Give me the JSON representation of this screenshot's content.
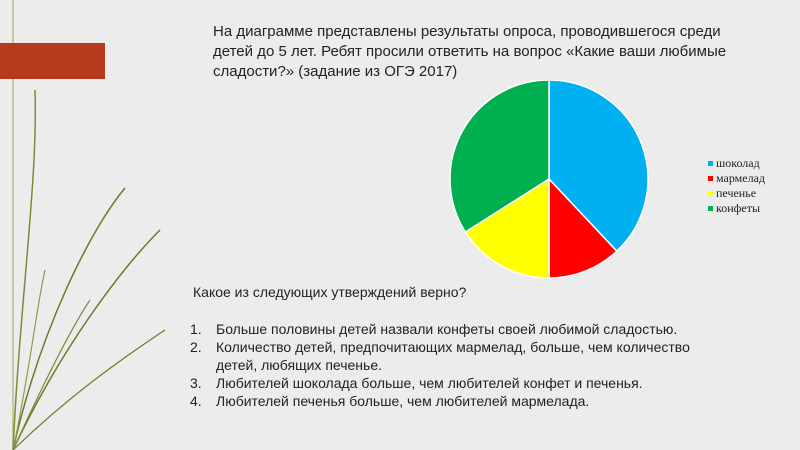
{
  "intro": "На диаграмме представлены результаты опроса, проводившегося среди детей до 5 лет. Ребят просили ответить на вопрос «Какие ваши любимые сладости?» (задание из ОГЭ 2017)",
  "question": "Какое из следующих утверждений верно?",
  "answers": [
    {
      "num": "1.",
      "text": "Больше половины детей назвали конфеты своей любимой сладостью."
    },
    {
      "num": "2.",
      "text": "Количество детей, предпочитающих мармелад, больше, чем количество детей, любящих печенье."
    },
    {
      "num": "3.",
      "text": "Любителей шоколада больше, чем любителей конфет и печенья."
    },
    {
      "num": "4.",
      "text": "Любителей печенья больше, чем любителей мармелада."
    }
  ],
  "chart_data": {
    "type": "pie",
    "categories": [
      "шоколад",
      "мармелад",
      "печенье",
      "конфеты"
    ],
    "values": [
      38,
      12,
      16,
      34
    ],
    "colors": [
      "#00b0f0",
      "#ff0000",
      "#ffff00",
      "#00b050"
    ],
    "legend_position": "right",
    "start": "12 o'clock, clockwise"
  },
  "colors": {
    "accent": "#b83a1e",
    "decor": "#6b7a2a"
  }
}
